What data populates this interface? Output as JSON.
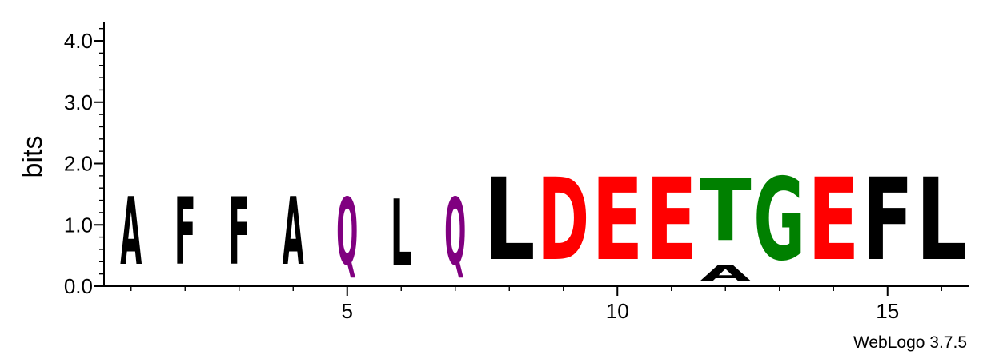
{
  "chart_data": {
    "type": "sequence-logo",
    "ylabel": "bits",
    "ylim": [
      0,
      4.3
    ],
    "yticks": [
      0.0,
      1.0,
      2.0,
      3.0,
      4.0
    ],
    "ytick_labels": [
      "0.0",
      "1.0",
      "2.0",
      "3.0",
      "4.0"
    ],
    "xlim": [
      0.5,
      16.5
    ],
    "xticks": [
      5,
      10,
      15
    ],
    "xtick_labels": [
      "5",
      "10",
      "15"
    ],
    "colors": {
      "A": "#000000",
      "F": "#000000",
      "L": "#000000",
      "Q": "#800080",
      "D": "#ff0000",
      "E": "#ff0000",
      "T": "#008000",
      "G": "#008000"
    },
    "positions": [
      {
        "pos": 1,
        "stack": [
          {
            "letter": "A",
            "bits": 1.77
          }
        ]
      },
      {
        "pos": 2,
        "stack": [
          {
            "letter": "F",
            "bits": 1.77
          }
        ]
      },
      {
        "pos": 3,
        "stack": [
          {
            "letter": "F",
            "bits": 1.77
          }
        ]
      },
      {
        "pos": 4,
        "stack": [
          {
            "letter": "A",
            "bits": 1.77
          }
        ]
      },
      {
        "pos": 5,
        "stack": [
          {
            "letter": "Q",
            "bits": 1.75
          }
        ]
      },
      {
        "pos": 6,
        "stack": [
          {
            "letter": "L",
            "bits": 1.73
          }
        ]
      },
      {
        "pos": 7,
        "stack": [
          {
            "letter": "Q",
            "bits": 1.75
          }
        ]
      },
      {
        "pos": 8,
        "stack": [
          {
            "letter": "L",
            "bits": 2.16
          }
        ]
      },
      {
        "pos": 9,
        "stack": [
          {
            "letter": "D",
            "bits": 2.16
          }
        ]
      },
      {
        "pos": 10,
        "stack": [
          {
            "letter": "E",
            "bits": 2.16
          }
        ]
      },
      {
        "pos": 11,
        "stack": [
          {
            "letter": "E",
            "bits": 2.16
          }
        ]
      },
      {
        "pos": 12,
        "stack": [
          {
            "letter": "A",
            "bits": 0.42
          },
          {
            "letter": "T",
            "bits": 1.62
          }
        ]
      },
      {
        "pos": 13,
        "stack": [
          {
            "letter": "G",
            "bits": 2.16
          }
        ]
      },
      {
        "pos": 14,
        "stack": [
          {
            "letter": "E",
            "bits": 2.16
          }
        ]
      },
      {
        "pos": 15,
        "stack": [
          {
            "letter": "F",
            "bits": 2.16
          }
        ]
      },
      {
        "pos": 16,
        "stack": [
          {
            "letter": "L",
            "bits": 2.16
          }
        ]
      }
    ]
  },
  "footer": {
    "credit": "WebLogo 3.7.5"
  }
}
